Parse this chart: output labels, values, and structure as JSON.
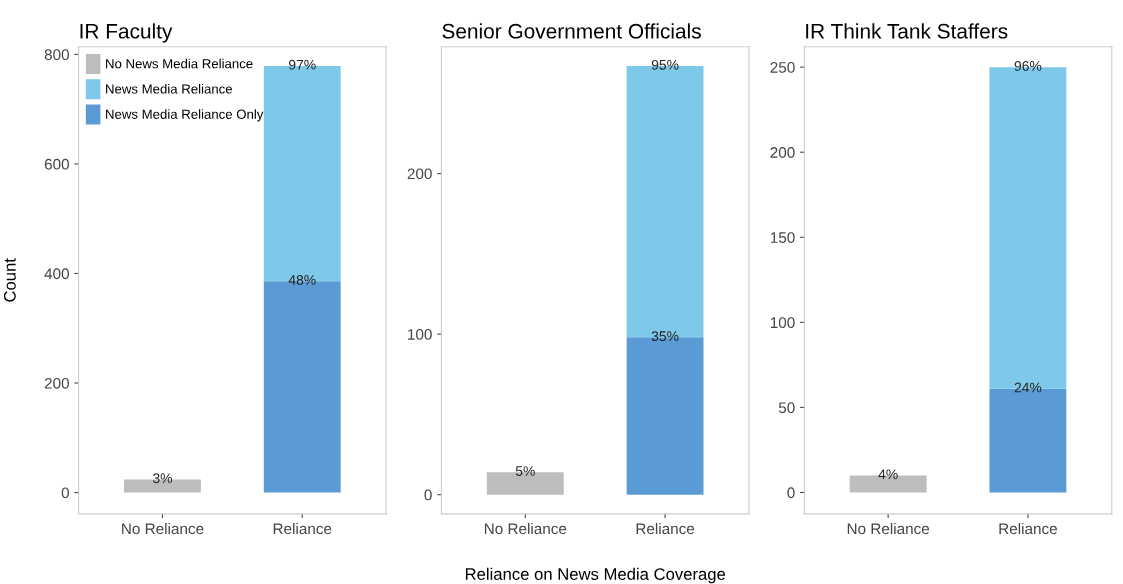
{
  "chart_data": [
    {
      "type": "bar",
      "title": "IR Faculty",
      "ylabel": "Count",
      "categories": [
        "No Reliance",
        "Reliance"
      ],
      "stacked": true,
      "legend": "top left",
      "grid": false,
      "ylim": [
        -39,
        814
      ],
      "yticks": [
        0,
        200,
        400,
        600,
        800
      ],
      "series": [
        {
          "name": "No News Media Reliance",
          "color": "#bdbdbd",
          "values": [
            24,
            null
          ]
        },
        {
          "name": "News Media Reliance Only",
          "color": "#5b9bd5",
          "values": [
            null,
            386
          ]
        },
        {
          "name": "News Media Reliance",
          "color": "#7ec8ea",
          "values": [
            null,
            393
          ]
        }
      ],
      "annotations": [
        {
          "text": "3%",
          "x": "No Reliance",
          "y": 24
        },
        {
          "text": "48%",
          "x": "Reliance",
          "y": 386
        },
        {
          "text": "97%",
          "x": "Reliance",
          "y": 779
        }
      ]
    },
    {
      "type": "bar",
      "title": "Senior Government Officials",
      "xlabel": "Reliance on News Media Coverage",
      "categories": [
        "No Reliance",
        "Reliance"
      ],
      "stacked": true,
      "grid": false,
      "ylim": [
        -12,
        279
      ],
      "yticks": [
        0,
        100,
        200
      ],
      "series": [
        {
          "color": "#bdbdbd",
          "values": [
            14,
            null
          ]
        },
        {
          "color": "#5b9bd5",
          "values": [
            null,
            98
          ]
        },
        {
          "color": "#7ec8ea",
          "values": [
            null,
            169
          ]
        }
      ],
      "annotations": [
        {
          "text": "5%",
          "x": "No Reliance",
          "y": 14
        },
        {
          "text": "35%",
          "x": "Reliance",
          "y": 98
        },
        {
          "text": "95%",
          "x": "Reliance",
          "y": 267
        }
      ]
    },
    {
      "type": "bar",
      "title": "IR Think Tank Staffers",
      "categories": [
        "No Reliance",
        "Reliance"
      ],
      "stacked": true,
      "grid": false,
      "ylim": [
        -12.6,
        262
      ],
      "yticks": [
        0,
        50,
        100,
        150,
        200,
        250
      ],
      "series": [
        {
          "color": "#bdbdbd",
          "values": [
            10,
            null
          ]
        },
        {
          "color": "#5b9bd5",
          "values": [
            null,
            61
          ]
        },
        {
          "color": "#7ec8ea",
          "values": [
            null,
            189
          ]
        }
      ],
      "annotations": [
        {
          "text": "4%",
          "x": "No Reliance",
          "y": 10
        },
        {
          "text": "24%",
          "x": "Reliance",
          "y": 61
        },
        {
          "text": "96%",
          "x": "Reliance",
          "y": 250
        }
      ]
    }
  ]
}
